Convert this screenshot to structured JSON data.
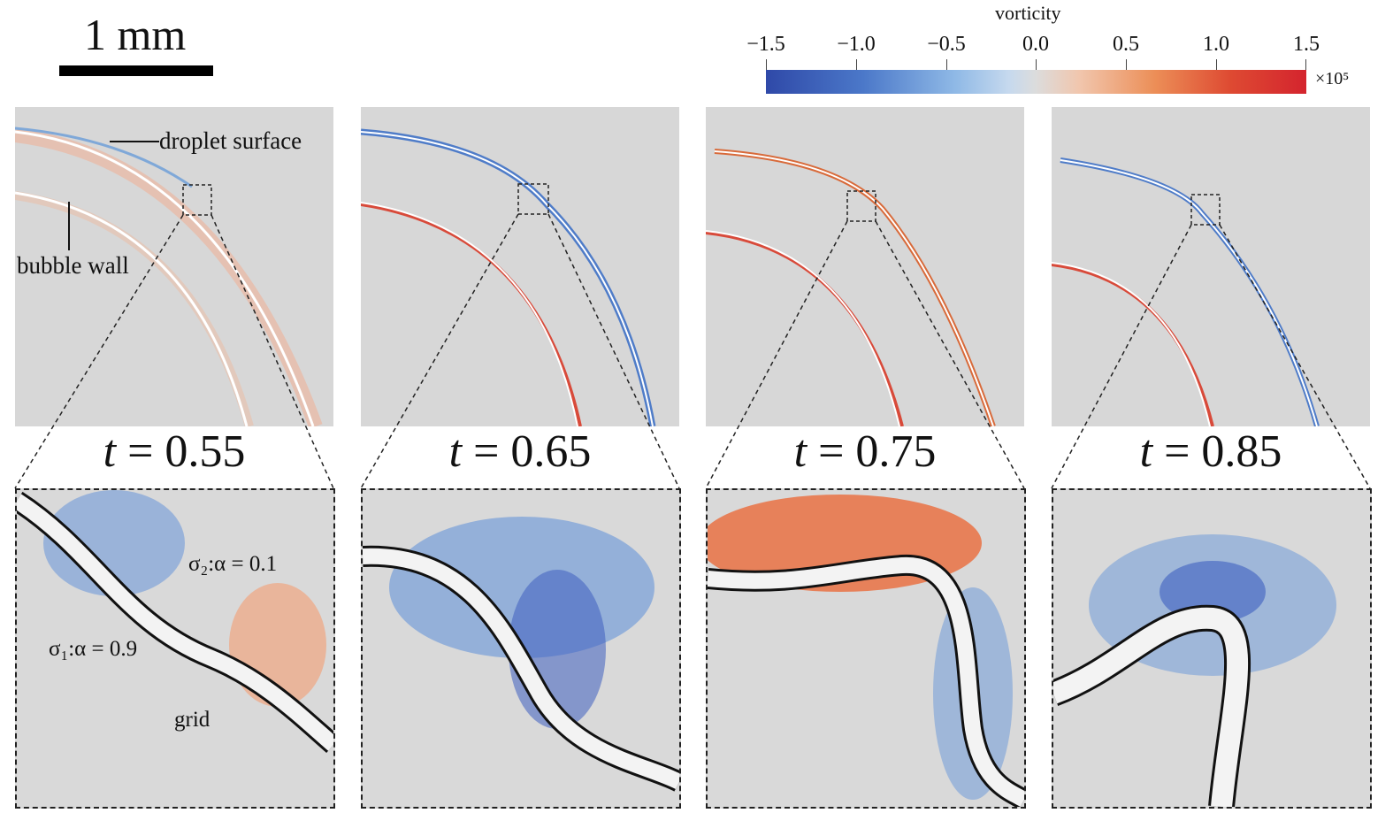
{
  "scale_bar": {
    "label": "1 mm"
  },
  "colorbar": {
    "title": "vorticity",
    "ticks": [
      "−1.5",
      "−1.0",
      "−0.5",
      "0.0",
      "0.5",
      "1.0",
      "1.5"
    ],
    "multiplier": "×10⁵",
    "colors": {
      "min": "#2f49a8",
      "zero": "#dcdcdc",
      "max": "#d4242e"
    }
  },
  "panels": [
    {
      "t_symbol": "t",
      "t_value": "= 0.55"
    },
    {
      "t_symbol": "t",
      "t_value": "= 0.65"
    },
    {
      "t_symbol": "t",
      "t_value": "= 0.75"
    },
    {
      "t_symbol": "t",
      "t_value": "= 0.85"
    }
  ],
  "annotations": {
    "droplet_surface": "droplet surface",
    "bubble_wall": "bubble wall",
    "sigma2": "σ₂:α = 0.1",
    "sigma1": "σ₁:α = 0.9",
    "grid": "grid"
  }
}
